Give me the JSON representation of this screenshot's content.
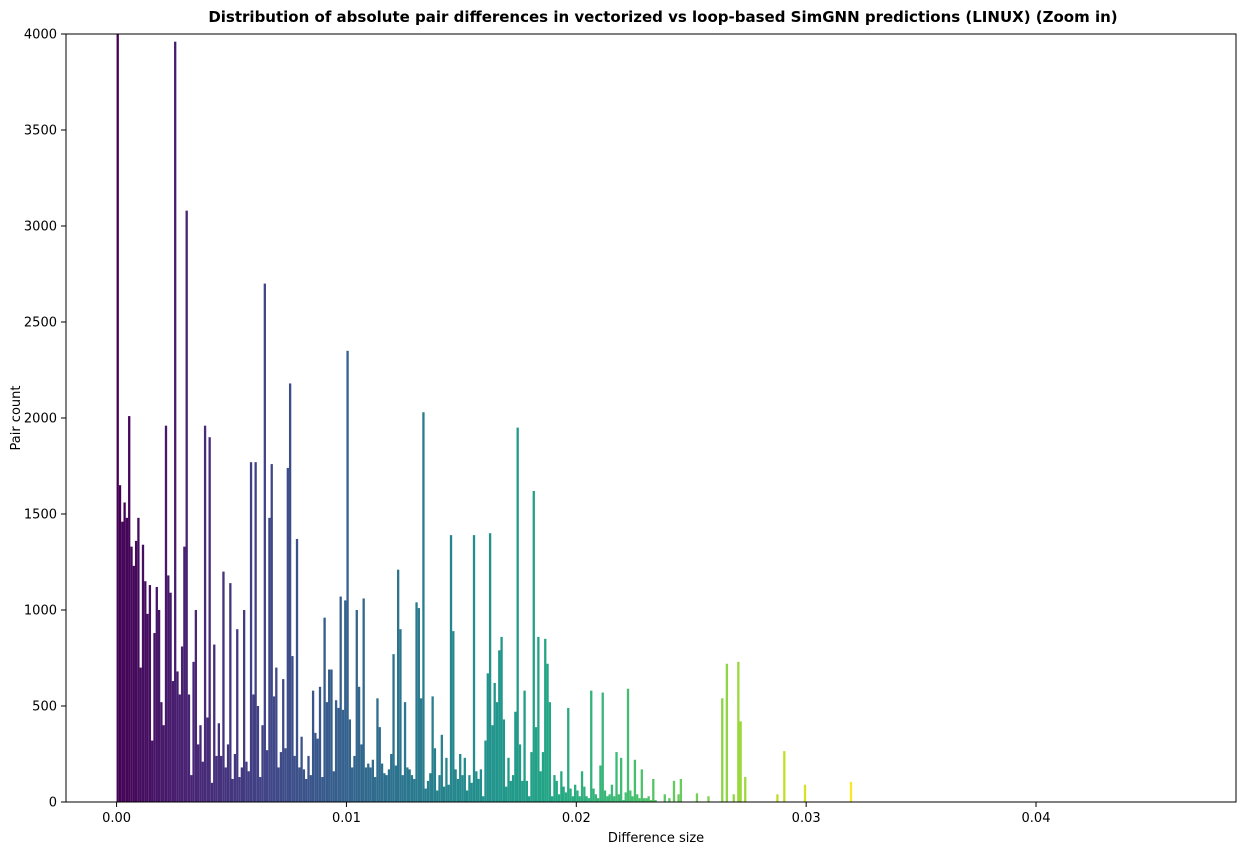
{
  "chart_data": {
    "type": "bar",
    "title": "Distribution of absolute pair differences in vectorized vs loop-based SimGNN predictions (LINUX) (Zoom in)",
    "xlabel": "Difference size",
    "ylabel": "Pair count",
    "xlim": [
      -0.0022,
      0.0487
    ],
    "ylim": [
      0,
      4000
    ],
    "bin_width": 0.0001,
    "colormap": "viridis",
    "grid": false,
    "legend": "none",
    "x_ticks": [
      {
        "value": 0.0,
        "label": "0.00"
      },
      {
        "value": 0.01,
        "label": "0.01"
      },
      {
        "value": 0.02,
        "label": "0.02"
      },
      {
        "value": 0.03,
        "label": "0.03"
      },
      {
        "value": 0.04,
        "label": "0.04"
      }
    ],
    "y_ticks": [
      {
        "value": 0,
        "label": "0"
      },
      {
        "value": 500,
        "label": "500"
      },
      {
        "value": 1000,
        "label": "1000"
      },
      {
        "value": 1500,
        "label": "1500"
      },
      {
        "value": 2000,
        "label": "2000"
      },
      {
        "value": 2500,
        "label": "2500"
      },
      {
        "value": 3000,
        "label": "3000"
      },
      {
        "value": 3500,
        "label": "3500"
      },
      {
        "value": 4000,
        "label": "4000"
      }
    ],
    "bars": [
      [
        0.0,
        4000
      ],
      [
        0.0001,
        1650
      ],
      [
        0.0002,
        1460
      ],
      [
        0.0003,
        1560
      ],
      [
        0.0004,
        1480
      ],
      [
        0.0005,
        2010
      ],
      [
        0.0006,
        1330
      ],
      [
        0.0007,
        1230
      ],
      [
        0.0008,
        1360
      ],
      [
        0.0009,
        1480
      ],
      [
        0.001,
        700
      ],
      [
        0.0011,
        1340
      ],
      [
        0.0012,
        1150
      ],
      [
        0.0013,
        980
      ],
      [
        0.0014,
        1130
      ],
      [
        0.0015,
        320
      ],
      [
        0.0016,
        880
      ],
      [
        0.0017,
        1120
      ],
      [
        0.0018,
        1000
      ],
      [
        0.0019,
        520
      ],
      [
        0.002,
        400
      ],
      [
        0.0021,
        1960
      ],
      [
        0.0022,
        1180
      ],
      [
        0.0023,
        1090
      ],
      [
        0.0024,
        630
      ],
      [
        0.0025,
        3960
      ],
      [
        0.0026,
        680
      ],
      [
        0.0027,
        560
      ],
      [
        0.0028,
        810
      ],
      [
        0.0029,
        1330
      ],
      [
        0.003,
        3080
      ],
      [
        0.0031,
        560
      ],
      [
        0.0032,
        140
      ],
      [
        0.0033,
        730
      ],
      [
        0.0034,
        1000
      ],
      [
        0.0035,
        300
      ],
      [
        0.0036,
        400
      ],
      [
        0.0037,
        210
      ],
      [
        0.0038,
        1960
      ],
      [
        0.0039,
        440
      ],
      [
        0.004,
        1900
      ],
      [
        0.0041,
        100
      ],
      [
        0.0042,
        820
      ],
      [
        0.0043,
        240
      ],
      [
        0.0044,
        410
      ],
      [
        0.0045,
        240
      ],
      [
        0.0046,
        1200
      ],
      [
        0.0047,
        180
      ],
      [
        0.0048,
        300
      ],
      [
        0.0049,
        1140
      ],
      [
        0.005,
        120
      ],
      [
        0.0051,
        250
      ],
      [
        0.0052,
        900
      ],
      [
        0.0053,
        130
      ],
      [
        0.0054,
        180
      ],
      [
        0.0055,
        1000
      ],
      [
        0.0056,
        210
      ],
      [
        0.0057,
        160
      ],
      [
        0.0058,
        1770
      ],
      [
        0.0059,
        560
      ],
      [
        0.006,
        1770
      ],
      [
        0.0061,
        500
      ],
      [
        0.0062,
        130
      ],
      [
        0.0063,
        400
      ],
      [
        0.0064,
        2700
      ],
      [
        0.0065,
        270
      ],
      [
        0.0066,
        1480
      ],
      [
        0.0067,
        1760
      ],
      [
        0.0068,
        550
      ],
      [
        0.0069,
        700
      ],
      [
        0.007,
        180
      ],
      [
        0.0071,
        260
      ],
      [
        0.0072,
        640
      ],
      [
        0.0073,
        280
      ],
      [
        0.0074,
        1740
      ],
      [
        0.0075,
        2180
      ],
      [
        0.0076,
        760
      ],
      [
        0.0077,
        240
      ],
      [
        0.0078,
        1370
      ],
      [
        0.0079,
        180
      ],
      [
        0.008,
        340
      ],
      [
        0.0081,
        170
      ],
      [
        0.0082,
        120
      ],
      [
        0.0083,
        240
      ],
      [
        0.0084,
        140
      ],
      [
        0.0085,
        580
      ],
      [
        0.0086,
        360
      ],
      [
        0.0087,
        330
      ],
      [
        0.0088,
        600
      ],
      [
        0.0089,
        130
      ],
      [
        0.009,
        960
      ],
      [
        0.0091,
        520
      ],
      [
        0.0092,
        690
      ],
      [
        0.0093,
        690
      ],
      [
        0.0094,
        160
      ],
      [
        0.0095,
        530
      ],
      [
        0.0096,
        490
      ],
      [
        0.0097,
        1070
      ],
      [
        0.0098,
        480
      ],
      [
        0.0099,
        1050
      ],
      [
        0.01,
        2350
      ],
      [
        0.0101,
        430
      ],
      [
        0.0102,
        180
      ],
      [
        0.0103,
        240
      ],
      [
        0.0104,
        1000
      ],
      [
        0.0105,
        600
      ],
      [
        0.0106,
        300
      ],
      [
        0.0107,
        1060
      ],
      [
        0.0108,
        180
      ],
      [
        0.0109,
        200
      ],
      [
        0.011,
        180
      ],
      [
        0.0111,
        220
      ],
      [
        0.0112,
        130
      ],
      [
        0.0113,
        540
      ],
      [
        0.0114,
        390
      ],
      [
        0.0115,
        200
      ],
      [
        0.0116,
        150
      ],
      [
        0.0117,
        140
      ],
      [
        0.0118,
        170
      ],
      [
        0.0119,
        250
      ],
      [
        0.012,
        770
      ],
      [
        0.0121,
        190
      ],
      [
        0.0122,
        1210
      ],
      [
        0.0123,
        900
      ],
      [
        0.0124,
        140
      ],
      [
        0.0125,
        520
      ],
      [
        0.0126,
        180
      ],
      [
        0.0127,
        170
      ],
      [
        0.0128,
        140
      ],
      [
        0.0129,
        120
      ],
      [
        0.013,
        1040
      ],
      [
        0.0131,
        1010
      ],
      [
        0.0132,
        540
      ],
      [
        0.0133,
        2030
      ],
      [
        0.0134,
        70
      ],
      [
        0.0135,
        110
      ],
      [
        0.0136,
        150
      ],
      [
        0.0137,
        550
      ],
      [
        0.0138,
        280
      ],
      [
        0.0139,
        60
      ],
      [
        0.014,
        140
      ],
      [
        0.0141,
        350
      ],
      [
        0.0142,
        80
      ],
      [
        0.0143,
        230
      ],
      [
        0.0144,
        90
      ],
      [
        0.0145,
        1390
      ],
      [
        0.0146,
        890
      ],
      [
        0.0147,
        170
      ],
      [
        0.0148,
        120
      ],
      [
        0.0149,
        250
      ],
      [
        0.015,
        140
      ],
      [
        0.0151,
        230
      ],
      [
        0.0152,
        60
      ],
      [
        0.0153,
        140
      ],
      [
        0.0154,
        100
      ],
      [
        0.0155,
        1390
      ],
      [
        0.0156,
        160
      ],
      [
        0.0157,
        120
      ],
      [
        0.0158,
        170
      ],
      [
        0.0159,
        30
      ],
      [
        0.016,
        320
      ],
      [
        0.0161,
        670
      ],
      [
        0.0162,
        1400
      ],
      [
        0.0163,
        400
      ],
      [
        0.0164,
        620
      ],
      [
        0.0165,
        520
      ],
      [
        0.0166,
        790
      ],
      [
        0.0167,
        860
      ],
      [
        0.0168,
        430
      ],
      [
        0.0169,
        80
      ],
      [
        0.017,
        230
      ],
      [
        0.0171,
        110
      ],
      [
        0.0172,
        140
      ],
      [
        0.0173,
        470
      ],
      [
        0.0174,
        1950
      ],
      [
        0.0175,
        300
      ],
      [
        0.0176,
        110
      ],
      [
        0.0177,
        580
      ],
      [
        0.0178,
        110
      ],
      [
        0.0179,
        30
      ],
      [
        0.018,
        260
      ],
      [
        0.0181,
        1620
      ],
      [
        0.0182,
        390
      ],
      [
        0.0183,
        860
      ],
      [
        0.0184,
        160
      ],
      [
        0.0185,
        260
      ],
      [
        0.0186,
        850
      ],
      [
        0.0187,
        720
      ],
      [
        0.0188,
        520
      ],
      [
        0.0189,
        30
      ],
      [
        0.019,
        140
      ],
      [
        0.0191,
        110
      ],
      [
        0.0192,
        40
      ],
      [
        0.0193,
        160
      ],
      [
        0.0194,
        80
      ],
      [
        0.0195,
        50
      ],
      [
        0.0196,
        490
      ],
      [
        0.0197,
        70
      ],
      [
        0.0198,
        30
      ],
      [
        0.0199,
        90
      ],
      [
        0.02,
        60
      ],
      [
        0.0201,
        30
      ],
      [
        0.0202,
        160
      ],
      [
        0.0203,
        80
      ],
      [
        0.0204,
        30
      ],
      [
        0.0205,
        20
      ],
      [
        0.0206,
        580
      ],
      [
        0.0207,
        70
      ],
      [
        0.0208,
        40
      ],
      [
        0.0209,
        20
      ],
      [
        0.021,
        190
      ],
      [
        0.0211,
        570
      ],
      [
        0.0212,
        60
      ],
      [
        0.0213,
        30
      ],
      [
        0.0214,
        40
      ],
      [
        0.0215,
        90
      ],
      [
        0.0216,
        30
      ],
      [
        0.0217,
        260
      ],
      [
        0.0218,
        40
      ],
      [
        0.0219,
        230
      ],
      [
        0.022,
        10
      ],
      [
        0.0221,
        50
      ],
      [
        0.0222,
        590
      ],
      [
        0.0223,
        60
      ],
      [
        0.0224,
        30
      ],
      [
        0.0225,
        220
      ],
      [
        0.0226,
        40
      ],
      [
        0.0227,
        20
      ],
      [
        0.0228,
        170
      ],
      [
        0.0229,
        20
      ],
      [
        0.023,
        20
      ],
      [
        0.0231,
        30
      ],
      [
        0.0232,
        10
      ],
      [
        0.0233,
        120
      ],
      [
        0.0234,
        10
      ],
      [
        0.0235,
        0
      ],
      [
        0.0236,
        0
      ],
      [
        0.0237,
        0
      ],
      [
        0.0238,
        40
      ],
      [
        0.0239,
        0
      ],
      [
        0.024,
        20
      ],
      [
        0.0241,
        0
      ],
      [
        0.0242,
        110
      ],
      [
        0.0243,
        0
      ],
      [
        0.0244,
        40
      ],
      [
        0.0245,
        120
      ],
      [
        0.0246,
        0
      ],
      [
        0.0247,
        0
      ],
      [
        0.0248,
        0
      ],
      [
        0.0249,
        0
      ],
      [
        0.025,
        0
      ],
      [
        0.0251,
        0
      ],
      [
        0.0252,
        45
      ],
      [
        0.0253,
        0
      ],
      [
        0.0254,
        0
      ],
      [
        0.0255,
        0
      ],
      [
        0.0256,
        0
      ],
      [
        0.0257,
        30
      ],
      [
        0.0258,
        0
      ],
      [
        0.0259,
        0
      ],
      [
        0.026,
        0
      ],
      [
        0.0261,
        0
      ],
      [
        0.0262,
        0
      ],
      [
        0.0263,
        540
      ],
      [
        0.0264,
        0
      ],
      [
        0.0265,
        720
      ],
      [
        0.0266,
        0
      ],
      [
        0.0267,
        0
      ],
      [
        0.0268,
        40
      ],
      [
        0.0269,
        0
      ],
      [
        0.027,
        730
      ],
      [
        0.0271,
        420
      ],
      [
        0.0272,
        0
      ],
      [
        0.0273,
        130
      ],
      [
        0.0274,
        0
      ],
      [
        0.0275,
        0
      ],
      [
        0.0276,
        0
      ],
      [
        0.0277,
        0
      ],
      [
        0.0278,
        0
      ],
      [
        0.0279,
        0
      ],
      [
        0.028,
        0
      ],
      [
        0.0281,
        0
      ],
      [
        0.0282,
        0
      ],
      [
        0.0283,
        0
      ],
      [
        0.0284,
        0
      ],
      [
        0.0285,
        0
      ],
      [
        0.0286,
        0
      ],
      [
        0.0287,
        40
      ],
      [
        0.0288,
        0
      ],
      [
        0.0289,
        0
      ],
      [
        0.029,
        265
      ],
      [
        0.0291,
        0
      ],
      [
        0.0292,
        0
      ],
      [
        0.0293,
        0
      ],
      [
        0.0294,
        0
      ],
      [
        0.0295,
        0
      ],
      [
        0.0296,
        0
      ],
      [
        0.0297,
        0
      ],
      [
        0.0298,
        0
      ],
      [
        0.0299,
        90
      ],
      [
        0.03,
        0
      ],
      [
        0.0301,
        0
      ],
      [
        0.0302,
        0
      ],
      [
        0.0303,
        0
      ],
      [
        0.0304,
        0
      ],
      [
        0.0305,
        0
      ],
      [
        0.0306,
        0
      ],
      [
        0.0307,
        0
      ],
      [
        0.0308,
        0
      ],
      [
        0.0309,
        0
      ],
      [
        0.031,
        0
      ],
      [
        0.0311,
        0
      ],
      [
        0.0312,
        0
      ],
      [
        0.0313,
        0
      ],
      [
        0.0314,
        0
      ],
      [
        0.0315,
        0
      ],
      [
        0.0316,
        0
      ],
      [
        0.0317,
        0
      ],
      [
        0.0318,
        0
      ],
      [
        0.0319,
        105
      ]
    ]
  }
}
